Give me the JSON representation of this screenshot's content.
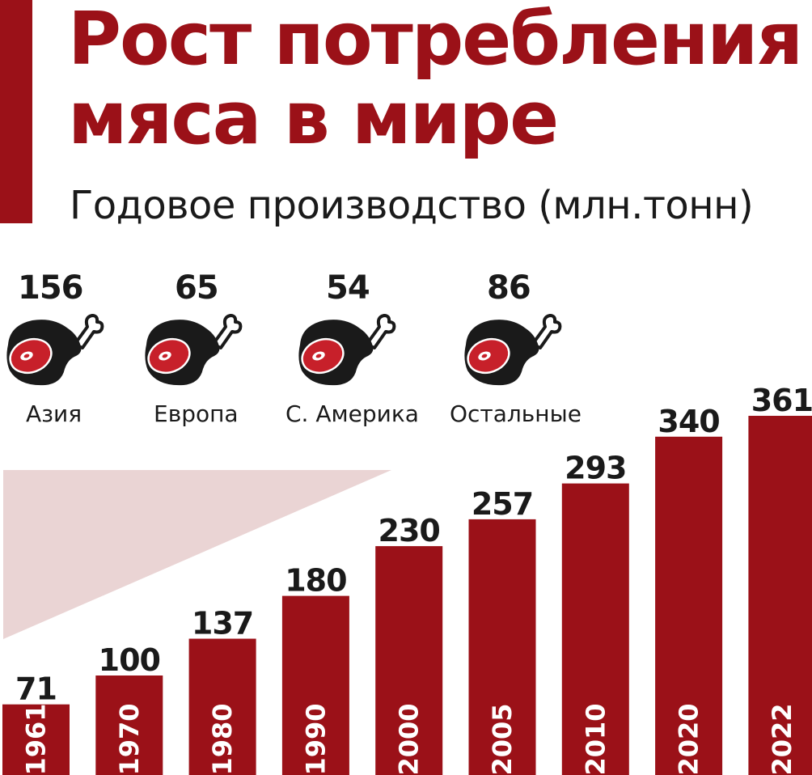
{
  "title": {
    "line1": "Рост потребления",
    "line2": "мяса в мире"
  },
  "subtitle": "Годовое производство (млн.тонн)",
  "colors": {
    "accent": "#9b1118",
    "meat_dark": "#1a1a1a",
    "meat_inner": "#c7202a",
    "bone": "#ffffff",
    "triangle": "#ead4d4",
    "text": "#1a1a1a"
  },
  "regions": [
    {
      "value": "156",
      "label": "Азия",
      "icon": "meat-leg-icon"
    },
    {
      "value": "65",
      "label": "Европа",
      "icon": "meat-leg-icon"
    },
    {
      "value": "54",
      "label": "С. Америка",
      "icon": "meat-leg-icon"
    },
    {
      "value": "86",
      "label": "Остальные",
      "icon": "meat-leg-icon"
    }
  ],
  "chart_data": {
    "type": "bar",
    "categories": [
      "1961",
      "1970",
      "1980",
      "1990",
      "2000",
      "2005",
      "2010",
      "2020",
      "2022"
    ],
    "values": [
      71,
      100,
      137,
      180,
      230,
      257,
      293,
      340,
      361
    ],
    "title": "Рост потребления мяса в мире",
    "ylabel": "",
    "xlabel": "",
    "grid": false,
    "legend": "none",
    "value_labels": [
      "71",
      "100",
      "137",
      "180",
      "230",
      "257",
      "293",
      "340",
      "361"
    ]
  }
}
